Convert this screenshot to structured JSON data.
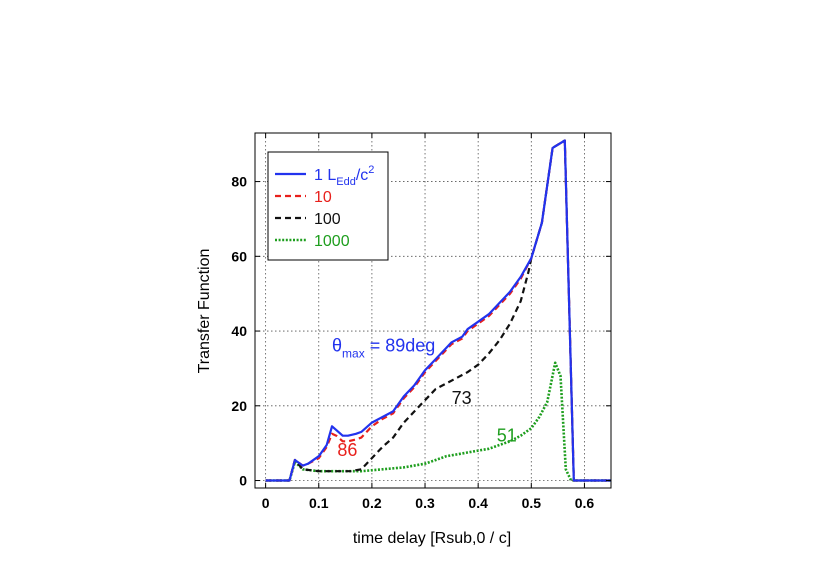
{
  "chart_data": {
    "type": "line",
    "title": "",
    "xlabel": "time delay [Rsub,0 / c]",
    "ylabel": "Transfer Function",
    "xlim": [
      -0.02,
      0.65
    ],
    "ylim": [
      -2,
      93
    ],
    "xticks": [
      0,
      0.1,
      0.2,
      0.3,
      0.4,
      0.5,
      0.6
    ],
    "xtick_labels": [
      "0",
      "0.1",
      "0.2",
      "0.3",
      "0.4",
      "0.5",
      "0.6"
    ],
    "yticks": [
      0,
      20,
      40,
      60,
      80
    ],
    "ytick_labels": [
      "0",
      "20",
      "40",
      "60",
      "80"
    ],
    "grid": true,
    "legend_position": "top-left",
    "series": [
      {
        "name": "1 LEdd/c2",
        "legend": {
          "main": "1 L",
          "sub": "Edd",
          "tail": "/c",
          "sup": "2"
        },
        "color": "#2233ee",
        "style": "solid",
        "x": [
          0,
          0.045,
          0.055,
          0.07,
          0.08,
          0.1,
          0.115,
          0.125,
          0.133,
          0.145,
          0.155,
          0.17,
          0.18,
          0.2,
          0.22,
          0.24,
          0.26,
          0.28,
          0.3,
          0.32,
          0.33,
          0.35,
          0.37,
          0.38,
          0.4,
          0.42,
          0.44,
          0.46,
          0.48,
          0.5,
          0.52,
          0.54,
          0.563,
          0.58,
          0.65
        ],
        "y": [
          0,
          0,
          5.5,
          4,
          4.5,
          6.5,
          9.5,
          14.5,
          13.5,
          12,
          12,
          12.5,
          13,
          15.5,
          17,
          18.5,
          22.5,
          25.5,
          29.5,
          32.5,
          34,
          37,
          38.5,
          40.5,
          42.5,
          44.5,
          47.5,
          50.5,
          54.5,
          59.5,
          69,
          89,
          91,
          0,
          0
        ]
      },
      {
        "name": "10",
        "color": "#e8201c",
        "style": "dashed",
        "x": [
          0,
          0.045,
          0.055,
          0.07,
          0.08,
          0.1,
          0.115,
          0.125,
          0.133,
          0.145,
          0.155,
          0.17,
          0.18,
          0.2,
          0.22,
          0.24,
          0.26,
          0.28,
          0.3,
          0.32,
          0.33,
          0.35,
          0.37,
          0.38,
          0.4,
          0.42,
          0.44,
          0.46,
          0.48,
          0.5,
          0.52,
          0.54,
          0.563,
          0.58,
          0.65
        ],
        "y": [
          0,
          0,
          5.5,
          4,
          4.5,
          6,
          9,
          12.5,
          12,
          10.5,
          10.5,
          11,
          11.5,
          14.5,
          16.5,
          18,
          22,
          25,
          29,
          32,
          33.5,
          36.5,
          38,
          40,
          42,
          44,
          47,
          50,
          54,
          59.5,
          69,
          89,
          91,
          0,
          0
        ]
      },
      {
        "name": "100",
        "color": "#111111",
        "style": "dashed",
        "x": [
          0,
          0.045,
          0.055,
          0.07,
          0.1,
          0.13,
          0.16,
          0.18,
          0.2,
          0.22,
          0.24,
          0.26,
          0.28,
          0.3,
          0.32,
          0.34,
          0.36,
          0.38,
          0.4,
          0.42,
          0.44,
          0.46,
          0.48,
          0.495,
          0.5,
          0.52,
          0.54,
          0.563,
          0.58,
          0.65
        ],
        "y": [
          0,
          0,
          5.5,
          3,
          2.5,
          2.5,
          2.5,
          3,
          6,
          9,
          11.5,
          15.5,
          18.5,
          21.5,
          24.5,
          26,
          27.5,
          29,
          31,
          34,
          37.5,
          42,
          48,
          56,
          59.5,
          69,
          89,
          91,
          0,
          0
        ]
      },
      {
        "name": "1000",
        "color": "#1e9e1e",
        "style": "dotted",
        "x": [
          0,
          0.045,
          0.055,
          0.07,
          0.1,
          0.14,
          0.18,
          0.22,
          0.26,
          0.3,
          0.32,
          0.34,
          0.36,
          0.38,
          0.4,
          0.42,
          0.44,
          0.46,
          0.48,
          0.5,
          0.515,
          0.53,
          0.545,
          0.555,
          0.565,
          0.575,
          0.65
        ],
        "y": [
          0,
          0,
          5,
          3,
          2.5,
          2.5,
          2.5,
          3,
          3.5,
          4.5,
          5.5,
          6.5,
          7,
          7.5,
          8,
          8.5,
          9.5,
          10.5,
          12,
          14,
          17,
          21,
          31.5,
          28,
          3,
          0,
          0
        ]
      }
    ],
    "annotations": [
      {
        "id": "theta",
        "main": "θ",
        "sub": "max",
        "tail": " = 89deg",
        "x": 0.125,
        "y": 34.5,
        "color": "#2233ee"
      },
      {
        "id": "a86",
        "text": "86",
        "x": 0.135,
        "y": 6.5,
        "color": "#e8201c"
      },
      {
        "id": "a73",
        "text": "73",
        "x": 0.35,
        "y": 20.5,
        "color": "#111111"
      },
      {
        "id": "a51",
        "text": "51",
        "x": 0.435,
        "y": 10.5,
        "color": "#1e9e1e"
      }
    ]
  }
}
